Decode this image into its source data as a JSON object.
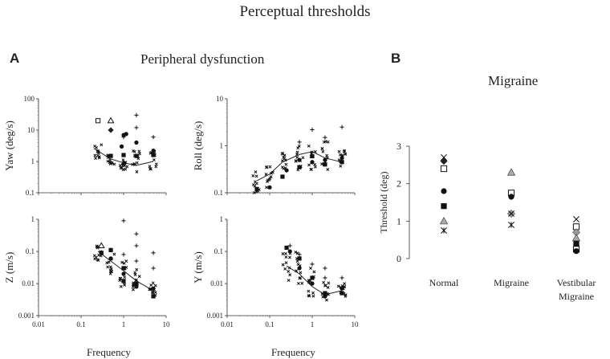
{
  "figure": {
    "title": "Perceptual thresholds",
    "panel_a_letter": "A",
    "panel_a_title": "Peripheral dysfunction",
    "panel_b_letter": "B",
    "panel_b_title": "Migraine",
    "freq_label": "Frequency"
  },
  "chart_data": [
    {
      "id": "yaw",
      "type": "scatter",
      "yscale": "log",
      "xscale": "log",
      "ylabel": "Yaw (deg/s)",
      "xlim": [
        0.01,
        10
      ],
      "ylim": [
        0.1,
        100
      ],
      "yticks": [
        "100",
        "10",
        "1",
        "0.1"
      ],
      "xticks": [],
      "fit": [
        [
          0.2,
          2.6
        ],
        [
          0.5,
          1.2
        ],
        [
          1,
          0.9
        ],
        [
          2,
          0.75
        ],
        [
          5,
          1.0
        ]
      ],
      "markers": [
        {
          "shape": "square-open",
          "x": 0.25,
          "y": 20
        },
        {
          "shape": "triangle-open",
          "x": 0.5,
          "y": 20
        },
        {
          "shape": "diamond",
          "x": 0.5,
          "y": 10
        },
        {
          "shape": "circle",
          "x": 1,
          "y": 7
        },
        {
          "shape": "circle",
          "x": 1.15,
          "y": 7.5
        },
        {
          "shape": "circle",
          "x": 0.9,
          "y": 3
        },
        {
          "shape": "square",
          "x": 1,
          "y": 1.6
        },
        {
          "shape": "square",
          "x": 0.5,
          "y": 1.5
        },
        {
          "shape": "triangle",
          "x": 1,
          "y": 0.9
        },
        {
          "shape": "circle",
          "x": 2,
          "y": 4
        },
        {
          "shape": "square",
          "x": 2,
          "y": 1.5
        },
        {
          "shape": "circle",
          "x": 5,
          "y": 2.2
        },
        {
          "shape": "square",
          "x": 5,
          "y": 1.6
        },
        {
          "shape": "plus",
          "x": 2,
          "y": 30
        },
        {
          "shape": "plus",
          "x": 2,
          "y": 12
        },
        {
          "shape": "plus",
          "x": 5,
          "y": 6
        },
        {
          "shape": "plus",
          "x": 1,
          "y": 6
        }
      ],
      "cross_groups": [
        {
          "x": 0.25,
          "ylo": 1.2,
          "yhi": 3.5
        },
        {
          "x": 0.5,
          "ylo": 0.7,
          "yhi": 1.6
        },
        {
          "x": 1,
          "ylo": 0.5,
          "yhi": 1.3
        },
        {
          "x": 2,
          "ylo": 0.45,
          "yhi": 2.2
        },
        {
          "x": 5,
          "ylo": 0.55,
          "yhi": 2.5
        }
      ]
    },
    {
      "id": "roll",
      "type": "scatter",
      "yscale": "log",
      "xscale": "log",
      "ylabel": "Roll (deg/s)",
      "xlim": [
        0.01,
        10
      ],
      "ylim": [
        0.1,
        10
      ],
      "yticks": [
        "10",
        "1",
        "0.1"
      ],
      "xticks": [],
      "fit": [
        [
          0.05,
          0.18
        ],
        [
          0.1,
          0.25
        ],
        [
          0.2,
          0.45
        ],
        [
          0.5,
          0.65
        ],
        [
          1,
          0.75
        ],
        [
          2,
          0.55
        ],
        [
          5,
          0.45
        ]
      ],
      "markers": [
        {
          "shape": "square",
          "x": 0.05,
          "y": 0.12
        },
        {
          "shape": "circle",
          "x": 0.1,
          "y": 0.13
        },
        {
          "shape": "square",
          "x": 0.2,
          "y": 0.22
        },
        {
          "shape": "circle",
          "x": 0.25,
          "y": 0.3
        },
        {
          "shape": "square",
          "x": 0.5,
          "y": 0.35
        },
        {
          "shape": "circle",
          "x": 0.5,
          "y": 0.5
        },
        {
          "shape": "square",
          "x": 1,
          "y": 0.6
        },
        {
          "shape": "circle",
          "x": 1,
          "y": 0.45
        },
        {
          "shape": "square",
          "x": 2,
          "y": 0.4
        },
        {
          "shape": "circle",
          "x": 2,
          "y": 0.5
        },
        {
          "shape": "square",
          "x": 5,
          "y": 0.45
        },
        {
          "shape": "circle",
          "x": 5,
          "y": 0.55
        },
        {
          "shape": "plus",
          "x": 1,
          "y": 2.2
        },
        {
          "shape": "plus",
          "x": 2,
          "y": 1.5
        },
        {
          "shape": "plus",
          "x": 5,
          "y": 2.5
        },
        {
          "shape": "plus",
          "x": 0.5,
          "y": 1.2
        }
      ],
      "cross_groups": [
        {
          "x": 0.05,
          "ylo": 0.1,
          "yhi": 0.3
        },
        {
          "x": 0.1,
          "ylo": 0.12,
          "yhi": 0.4
        },
        {
          "x": 0.2,
          "ylo": 0.2,
          "yhi": 0.7
        },
        {
          "x": 0.5,
          "ylo": 0.3,
          "yhi": 1.0
        },
        {
          "x": 1,
          "ylo": 0.3,
          "yhi": 1.5
        },
        {
          "x": 2,
          "ylo": 0.3,
          "yhi": 1.3
        },
        {
          "x": 5,
          "ylo": 0.3,
          "yhi": 1.1
        }
      ]
    },
    {
      "id": "z",
      "type": "scatter",
      "yscale": "log",
      "xscale": "log",
      "ylabel": "Z (m/s)",
      "xlim": [
        0.01,
        10
      ],
      "ylim": [
        0.001,
        1
      ],
      "yticks": [
        "1",
        "0.1",
        "0.01",
        "0.001"
      ],
      "xticks": [
        "0.01",
        "0.1",
        "1",
        "10"
      ],
      "fit": [
        [
          0.25,
          0.1
        ],
        [
          0.5,
          0.05
        ],
        [
          1,
          0.025
        ],
        [
          2,
          0.012
        ],
        [
          5,
          0.006
        ]
      ],
      "markers": [
        {
          "shape": "triangle-open",
          "x": 0.3,
          "y": 0.15
        },
        {
          "shape": "square",
          "x": 0.3,
          "y": 0.09
        },
        {
          "shape": "square",
          "x": 0.5,
          "y": 0.11
        },
        {
          "shape": "circle",
          "x": 0.5,
          "y": 0.06
        },
        {
          "shape": "square",
          "x": 1,
          "y": 0.03
        },
        {
          "shape": "circle",
          "x": 1,
          "y": 0.02
        },
        {
          "shape": "square",
          "x": 1,
          "y": 0.012
        },
        {
          "shape": "square",
          "x": 2,
          "y": 0.01
        },
        {
          "shape": "circle",
          "x": 2,
          "y": 0.008
        },
        {
          "shape": "square",
          "x": 5,
          "y": 0.004
        },
        {
          "shape": "circle",
          "x": 5,
          "y": 0.007
        },
        {
          "shape": "plus",
          "x": 1,
          "y": 0.9
        },
        {
          "shape": "plus",
          "x": 2,
          "y": 0.35
        },
        {
          "shape": "plus",
          "x": 2,
          "y": 0.15
        },
        {
          "shape": "plus",
          "x": 2,
          "y": 0.05
        },
        {
          "shape": "plus",
          "x": 5,
          "y": 0.09
        },
        {
          "shape": "plus",
          "x": 5,
          "y": 0.03
        },
        {
          "shape": "plus",
          "x": 1,
          "y": 0.08
        }
      ],
      "cross_groups": [
        {
          "x": 0.25,
          "ylo": 0.05,
          "yhi": 0.15
        },
        {
          "x": 0.5,
          "ylo": 0.02,
          "yhi": 0.1
        },
        {
          "x": 1,
          "ylo": 0.008,
          "yhi": 0.05
        },
        {
          "x": 2,
          "ylo": 0.005,
          "yhi": 0.03
        },
        {
          "x": 5,
          "ylo": 0.004,
          "yhi": 0.012
        }
      ]
    },
    {
      "id": "y",
      "type": "scatter",
      "yscale": "log",
      "xscale": "log",
      "ylabel": "Y (m/s)",
      "xlim": [
        0.01,
        10
      ],
      "ylim": [
        0.001,
        1
      ],
      "yticks": [
        "1",
        "0.1",
        "0.01",
        "0.001"
      ],
      "xticks": [
        "0.01",
        "0.1",
        "1",
        "10"
      ],
      "fit": [
        [
          0.25,
          0.035
        ],
        [
          0.5,
          0.02
        ],
        [
          1,
          0.008
        ],
        [
          2,
          0.0045
        ],
        [
          5,
          0.006
        ]
      ],
      "markers": [
        {
          "shape": "square",
          "x": 0.25,
          "y": 0.13
        },
        {
          "shape": "circle",
          "x": 0.3,
          "y": 0.1
        },
        {
          "shape": "square",
          "x": 0.5,
          "y": 0.06
        },
        {
          "shape": "circle",
          "x": 0.5,
          "y": 0.03
        },
        {
          "shape": "square",
          "x": 1,
          "y": 0.015
        },
        {
          "shape": "circle",
          "x": 1,
          "y": 0.01
        },
        {
          "shape": "square",
          "x": 2,
          "y": 0.005
        },
        {
          "shape": "circle",
          "x": 2,
          "y": 0.004
        },
        {
          "shape": "square",
          "x": 5,
          "y": 0.005
        },
        {
          "shape": "circle",
          "x": 5,
          "y": 0.007
        },
        {
          "shape": "plus",
          "x": 0.5,
          "y": 0.08
        },
        {
          "shape": "plus",
          "x": 1,
          "y": 0.04
        },
        {
          "shape": "plus",
          "x": 2,
          "y": 0.03
        },
        {
          "shape": "plus",
          "x": 2,
          "y": 0.015
        },
        {
          "shape": "plus",
          "x": 5,
          "y": 0.015
        },
        {
          "shape": "plus",
          "x": 0.3,
          "y": 0.15
        }
      ],
      "cross_groups": [
        {
          "x": 0.25,
          "ylo": 0.01,
          "yhi": 0.15
        },
        {
          "x": 0.5,
          "ylo": 0.008,
          "yhi": 0.1
        },
        {
          "x": 1,
          "ylo": 0.004,
          "yhi": 0.03
        },
        {
          "x": 2,
          "ylo": 0.003,
          "yhi": 0.012
        },
        {
          "x": 5,
          "ylo": 0.004,
          "yhi": 0.01
        }
      ]
    },
    {
      "id": "migraine",
      "type": "scatter",
      "ylabel": "Threshold (deg)",
      "ylim": [
        0,
        3
      ],
      "yticks": [
        "3",
        "2",
        "1",
        "0"
      ],
      "categories": [
        "Normal",
        "Migraine",
        "Vestibular Migraine"
      ],
      "points": [
        {
          "cat": 0,
          "shape": "x",
          "y": 2.7
        },
        {
          "cat": 0,
          "shape": "diamond",
          "y": 2.6
        },
        {
          "cat": 0,
          "shape": "square-open",
          "y": 2.4
        },
        {
          "cat": 0,
          "shape": "circle",
          "y": 1.8
        },
        {
          "cat": 0,
          "shape": "square",
          "y": 1.4
        },
        {
          "cat": 0,
          "shape": "triangle-gray",
          "y": 1.0
        },
        {
          "cat": 0,
          "shape": "asterisk",
          "y": 0.75
        },
        {
          "cat": 1,
          "shape": "triangle-gray",
          "y": 2.3
        },
        {
          "cat": 1,
          "shape": "square-open",
          "y": 1.75
        },
        {
          "cat": 1,
          "shape": "plus",
          "y": 1.65
        },
        {
          "cat": 1,
          "shape": "circle",
          "y": 1.65
        },
        {
          "cat": 1,
          "shape": "diamond-gray",
          "y": 1.2
        },
        {
          "cat": 1,
          "shape": "x",
          "y": 1.2
        },
        {
          "cat": 1,
          "shape": "asterisk",
          "y": 0.9
        },
        {
          "cat": 2,
          "shape": "x",
          "y": 1.05
        },
        {
          "cat": 2,
          "shape": "square-open",
          "y": 0.85
        },
        {
          "cat": 2,
          "shape": "diamond-gray",
          "y": 0.7
        },
        {
          "cat": 2,
          "shape": "triangle-gray",
          "y": 0.55
        },
        {
          "cat": 2,
          "shape": "square",
          "y": 0.4
        },
        {
          "cat": 2,
          "shape": "asterisk",
          "y": 0.3
        },
        {
          "cat": 2,
          "shape": "square-open",
          "y": 0.25
        },
        {
          "cat": 2,
          "shape": "circle",
          "y": 0.2
        }
      ]
    }
  ]
}
